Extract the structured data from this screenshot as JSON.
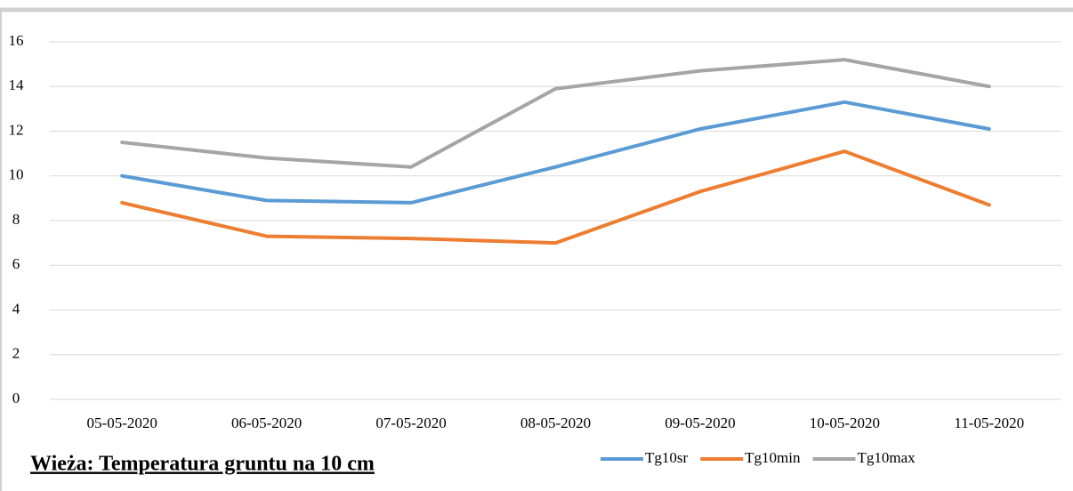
{
  "chart_data": {
    "type": "line",
    "title": "Wieża: Temperatura gruntu na 10 cm",
    "categories": [
      "05-05-2020",
      "06-05-2020",
      "07-05-2020",
      "08-05-2020",
      "09-05-2020",
      "10-05-2020",
      "11-05-2020"
    ],
    "series": [
      {
        "name": "Tg10sr",
        "color": "#5b9bd5",
        "values": [
          10.0,
          8.9,
          8.8,
          10.4,
          12.1,
          13.3,
          12.1
        ]
      },
      {
        "name": "Tg10min",
        "color": "#ed7d31",
        "values": [
          8.8,
          7.3,
          7.2,
          7.0,
          9.3,
          11.1,
          8.7
        ]
      },
      {
        "name": "Tg10max",
        "color": "#a5a5a5",
        "values": [
          11.5,
          10.8,
          10.4,
          13.9,
          14.7,
          15.2,
          14.0
        ]
      }
    ],
    "ylim": [
      0,
      16
    ],
    "yticks": [
      0,
      2,
      4,
      6,
      8,
      10,
      12,
      14,
      16
    ],
    "grid": true,
    "legend": "bottom-right"
  }
}
